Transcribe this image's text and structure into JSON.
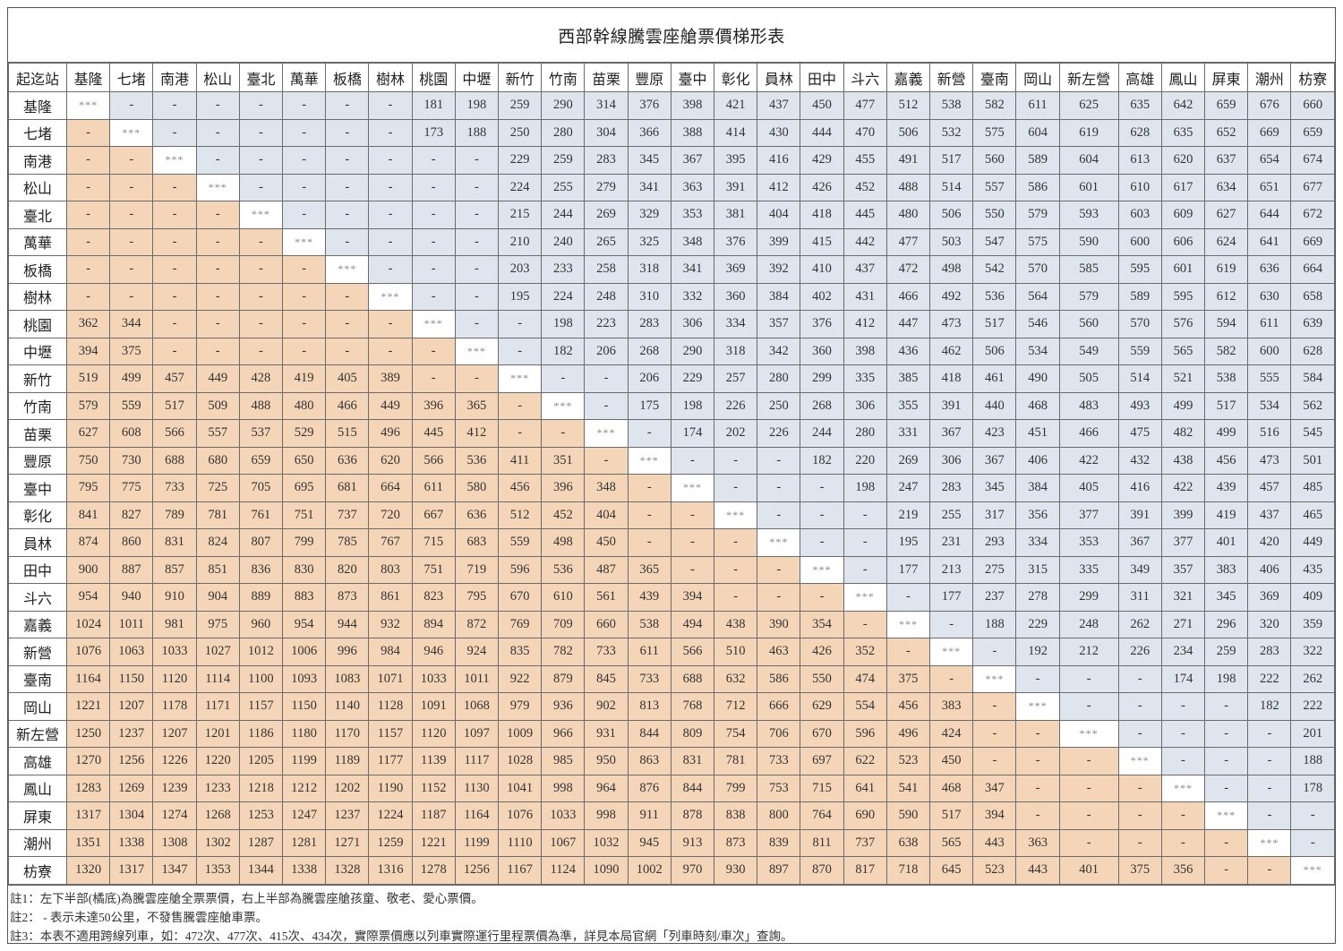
{
  "title": "西部幹線騰雲座艙票價梯形表",
  "corner_label": "起迄站",
  "stations": [
    "基隆",
    "七堵",
    "南港",
    "松山",
    "臺北",
    "萬華",
    "板橋",
    "樹林",
    "桃園",
    "中壢",
    "新竹",
    "竹南",
    "苗栗",
    "豐原",
    "臺中",
    "彰化",
    "員林",
    "田中",
    "斗六",
    "嘉義",
    "新營",
    "臺南",
    "岡山",
    "新左營",
    "高雄",
    "鳳山",
    "屏東",
    "潮州",
    "枋寮"
  ],
  "diag_marker": "***",
  "na_marker": "-",
  "colors": {
    "lower_full_fare": "#f5d5b8",
    "upper_concession_fare": "#dfe5ee",
    "diagonal": "#ffffff"
  },
  "rows": [
    {
      "station": "基隆",
      "cells": [
        "***",
        "-",
        "-",
        "-",
        "-",
        "-",
        "-",
        "-",
        "181",
        "198",
        "259",
        "290",
        "314",
        "376",
        "398",
        "421",
        "437",
        "450",
        "477",
        "512",
        "538",
        "582",
        "611",
        "625",
        "635",
        "642",
        "659",
        "676",
        "660"
      ]
    },
    {
      "station": "七堵",
      "cells": [
        "-",
        "***",
        "-",
        "-",
        "-",
        "-",
        "-",
        "-",
        "173",
        "188",
        "250",
        "280",
        "304",
        "366",
        "388",
        "414",
        "430",
        "444",
        "470",
        "506",
        "532",
        "575",
        "604",
        "619",
        "628",
        "635",
        "652",
        "669",
        "659"
      ]
    },
    {
      "station": "南港",
      "cells": [
        "-",
        "-",
        "***",
        "-",
        "-",
        "-",
        "-",
        "-",
        "-",
        "-",
        "229",
        "259",
        "283",
        "345",
        "367",
        "395",
        "416",
        "429",
        "455",
        "491",
        "517",
        "560",
        "589",
        "604",
        "613",
        "620",
        "637",
        "654",
        "674"
      ]
    },
    {
      "station": "松山",
      "cells": [
        "-",
        "-",
        "-",
        "***",
        "-",
        "-",
        "-",
        "-",
        "-",
        "-",
        "224",
        "255",
        "279",
        "341",
        "363",
        "391",
        "412",
        "426",
        "452",
        "488",
        "514",
        "557",
        "586",
        "601",
        "610",
        "617",
        "634",
        "651",
        "677"
      ]
    },
    {
      "station": "臺北",
      "cells": [
        "-",
        "-",
        "-",
        "-",
        "***",
        "-",
        "-",
        "-",
        "-",
        "-",
        "215",
        "244",
        "269",
        "329",
        "353",
        "381",
        "404",
        "418",
        "445",
        "480",
        "506",
        "550",
        "579",
        "593",
        "603",
        "609",
        "627",
        "644",
        "672"
      ]
    },
    {
      "station": "萬華",
      "cells": [
        "-",
        "-",
        "-",
        "-",
        "-",
        "***",
        "-",
        "-",
        "-",
        "-",
        "210",
        "240",
        "265",
        "325",
        "348",
        "376",
        "399",
        "415",
        "442",
        "477",
        "503",
        "547",
        "575",
        "590",
        "600",
        "606",
        "624",
        "641",
        "669"
      ]
    },
    {
      "station": "板橋",
      "cells": [
        "-",
        "-",
        "-",
        "-",
        "-",
        "-",
        "***",
        "-",
        "-",
        "-",
        "203",
        "233",
        "258",
        "318",
        "341",
        "369",
        "392",
        "410",
        "437",
        "472",
        "498",
        "542",
        "570",
        "585",
        "595",
        "601",
        "619",
        "636",
        "664"
      ]
    },
    {
      "station": "樹林",
      "cells": [
        "-",
        "-",
        "-",
        "-",
        "-",
        "-",
        "-",
        "***",
        "-",
        "-",
        "195",
        "224",
        "248",
        "310",
        "332",
        "360",
        "384",
        "402",
        "431",
        "466",
        "492",
        "536",
        "564",
        "579",
        "589",
        "595",
        "612",
        "630",
        "658"
      ]
    },
    {
      "station": "桃園",
      "cells": [
        "362",
        "344",
        "-",
        "-",
        "-",
        "-",
        "-",
        "-",
        "***",
        "-",
        "-",
        "198",
        "223",
        "283",
        "306",
        "334",
        "357",
        "376",
        "412",
        "447",
        "473",
        "517",
        "546",
        "560",
        "570",
        "576",
        "594",
        "611",
        "639"
      ]
    },
    {
      "station": "中壢",
      "cells": [
        "394",
        "375",
        "-",
        "-",
        "-",
        "-",
        "-",
        "-",
        "-",
        "***",
        "-",
        "182",
        "206",
        "268",
        "290",
        "318",
        "342",
        "360",
        "398",
        "436",
        "462",
        "506",
        "534",
        "549",
        "559",
        "565",
        "582",
        "600",
        "628"
      ]
    },
    {
      "station": "新竹",
      "cells": [
        "519",
        "499",
        "457",
        "449",
        "428",
        "419",
        "405",
        "389",
        "-",
        "-",
        "***",
        "-",
        "-",
        "206",
        "229",
        "257",
        "280",
        "299",
        "335",
        "385",
        "418",
        "461",
        "490",
        "505",
        "514",
        "521",
        "538",
        "555",
        "584"
      ]
    },
    {
      "station": "竹南",
      "cells": [
        "579",
        "559",
        "517",
        "509",
        "488",
        "480",
        "466",
        "449",
        "396",
        "365",
        "-",
        "***",
        "-",
        "175",
        "198",
        "226",
        "250",
        "268",
        "306",
        "355",
        "391",
        "440",
        "468",
        "483",
        "493",
        "499",
        "517",
        "534",
        "562"
      ]
    },
    {
      "station": "苗栗",
      "cells": [
        "627",
        "608",
        "566",
        "557",
        "537",
        "529",
        "515",
        "496",
        "445",
        "412",
        "-",
        "-",
        "***",
        "-",
        "174",
        "202",
        "226",
        "244",
        "280",
        "331",
        "367",
        "423",
        "451",
        "466",
        "475",
        "482",
        "499",
        "516",
        "545"
      ]
    },
    {
      "station": "豐原",
      "cells": [
        "750",
        "730",
        "688",
        "680",
        "659",
        "650",
        "636",
        "620",
        "566",
        "536",
        "411",
        "351",
        "-",
        "***",
        "-",
        "-",
        "-",
        "182",
        "220",
        "269",
        "306",
        "367",
        "406",
        "422",
        "432",
        "438",
        "456",
        "473",
        "501"
      ]
    },
    {
      "station": "臺中",
      "cells": [
        "795",
        "775",
        "733",
        "725",
        "705",
        "695",
        "681",
        "664",
        "611",
        "580",
        "456",
        "396",
        "348",
        "-",
        "***",
        "-",
        "-",
        "-",
        "198",
        "247",
        "283",
        "345",
        "384",
        "405",
        "416",
        "422",
        "439",
        "457",
        "485"
      ]
    },
    {
      "station": "彰化",
      "cells": [
        "841",
        "827",
        "789",
        "781",
        "761",
        "751",
        "737",
        "720",
        "667",
        "636",
        "512",
        "452",
        "404",
        "-",
        "-",
        "***",
        "-",
        "-",
        "-",
        "219",
        "255",
        "317",
        "356",
        "377",
        "391",
        "399",
        "419",
        "437",
        "465"
      ]
    },
    {
      "station": "員林",
      "cells": [
        "874",
        "860",
        "831",
        "824",
        "807",
        "799",
        "785",
        "767",
        "715",
        "683",
        "559",
        "498",
        "450",
        "-",
        "-",
        "-",
        "***",
        "-",
        "-",
        "195",
        "231",
        "293",
        "334",
        "353",
        "367",
        "377",
        "401",
        "420",
        "449"
      ]
    },
    {
      "station": "田中",
      "cells": [
        "900",
        "887",
        "857",
        "851",
        "836",
        "830",
        "820",
        "803",
        "751",
        "719",
        "596",
        "536",
        "487",
        "365",
        "-",
        "-",
        "-",
        "***",
        "-",
        "177",
        "213",
        "275",
        "315",
        "335",
        "349",
        "357",
        "383",
        "406",
        "435"
      ]
    },
    {
      "station": "斗六",
      "cells": [
        "954",
        "940",
        "910",
        "904",
        "889",
        "883",
        "873",
        "861",
        "823",
        "795",
        "670",
        "610",
        "561",
        "439",
        "394",
        "-",
        "-",
        "-",
        "***",
        "-",
        "177",
        "237",
        "278",
        "299",
        "311",
        "321",
        "345",
        "369",
        "409"
      ]
    },
    {
      "station": "嘉義",
      "cells": [
        "1024",
        "1011",
        "981",
        "975",
        "960",
        "954",
        "944",
        "932",
        "894",
        "872",
        "769",
        "709",
        "660",
        "538",
        "494",
        "438",
        "390",
        "354",
        "-",
        "***",
        "-",
        "188",
        "229",
        "248",
        "262",
        "271",
        "296",
        "320",
        "359"
      ]
    },
    {
      "station": "新營",
      "cells": [
        "1076",
        "1063",
        "1033",
        "1027",
        "1012",
        "1006",
        "996",
        "984",
        "946",
        "924",
        "835",
        "782",
        "733",
        "611",
        "566",
        "510",
        "463",
        "426",
        "352",
        "-",
        "***",
        "-",
        "192",
        "212",
        "226",
        "234",
        "259",
        "283",
        "322"
      ]
    },
    {
      "station": "臺南",
      "cells": [
        "1164",
        "1150",
        "1120",
        "1114",
        "1100",
        "1093",
        "1083",
        "1071",
        "1033",
        "1011",
        "922",
        "879",
        "845",
        "733",
        "688",
        "632",
        "586",
        "550",
        "474",
        "375",
        "-",
        "***",
        "-",
        "-",
        "-",
        "174",
        "198",
        "222",
        "262"
      ]
    },
    {
      "station": "岡山",
      "cells": [
        "1221",
        "1207",
        "1178",
        "1171",
        "1157",
        "1150",
        "1140",
        "1128",
        "1091",
        "1068",
        "979",
        "936",
        "902",
        "813",
        "768",
        "712",
        "666",
        "629",
        "554",
        "456",
        "383",
        "-",
        "***",
        "-",
        "-",
        "-",
        "-",
        "182",
        "222"
      ]
    },
    {
      "station": "新左營",
      "cells": [
        "1250",
        "1237",
        "1207",
        "1201",
        "1186",
        "1180",
        "1170",
        "1157",
        "1120",
        "1097",
        "1009",
        "966",
        "931",
        "844",
        "809",
        "754",
        "706",
        "670",
        "596",
        "496",
        "424",
        "-",
        "-",
        "***",
        "-",
        "-",
        "-",
        "-",
        "201"
      ]
    },
    {
      "station": "高雄",
      "cells": [
        "1270",
        "1256",
        "1226",
        "1220",
        "1205",
        "1199",
        "1189",
        "1177",
        "1139",
        "1117",
        "1028",
        "985",
        "950",
        "863",
        "831",
        "781",
        "733",
        "697",
        "622",
        "523",
        "450",
        "-",
        "-",
        "-",
        "***",
        "-",
        "-",
        "-",
        "188"
      ]
    },
    {
      "station": "鳳山",
      "cells": [
        "1283",
        "1269",
        "1239",
        "1233",
        "1218",
        "1212",
        "1202",
        "1190",
        "1152",
        "1130",
        "1041",
        "998",
        "964",
        "876",
        "844",
        "799",
        "753",
        "715",
        "641",
        "541",
        "468",
        "347",
        "-",
        "-",
        "-",
        "***",
        "-",
        "-",
        "178"
      ]
    },
    {
      "station": "屏東",
      "cells": [
        "1317",
        "1304",
        "1274",
        "1268",
        "1253",
        "1247",
        "1237",
        "1224",
        "1187",
        "1164",
        "1076",
        "1033",
        "998",
        "911",
        "878",
        "838",
        "800",
        "764",
        "690",
        "590",
        "517",
        "394",
        "-",
        "-",
        "-",
        "-",
        "***",
        "-",
        "-"
      ]
    },
    {
      "station": "潮州",
      "cells": [
        "1351",
        "1338",
        "1308",
        "1302",
        "1287",
        "1281",
        "1271",
        "1259",
        "1221",
        "1199",
        "1110",
        "1067",
        "1032",
        "945",
        "913",
        "873",
        "839",
        "811",
        "737",
        "638",
        "565",
        "443",
        "363",
        "-",
        "-",
        "-",
        "-",
        "***",
        "-"
      ]
    },
    {
      "station": "枋寮",
      "cells": [
        "1320",
        "1317",
        "1347",
        "1353",
        "1344",
        "1338",
        "1328",
        "1316",
        "1278",
        "1256",
        "1167",
        "1124",
        "1090",
        "1002",
        "970",
        "930",
        "897",
        "870",
        "817",
        "718",
        "645",
        "523",
        "443",
        "401",
        "375",
        "356",
        "-",
        "-",
        "***"
      ]
    }
  ],
  "notes": [
    "註1：左下半部(橘底)為騰雲座艙全票票價，右上半部為騰雲座艙孩童、敬老、愛心票價。",
    "註2： - 表示未達50公里，不發售騰雲座艙車票。",
    "註3：本表不適用跨線列車，如：472次、477次、415次、434次，實際票價應以列車實際運行里程票價為準，詳見本局官網「列車時刻/車次」查詢。"
  ]
}
